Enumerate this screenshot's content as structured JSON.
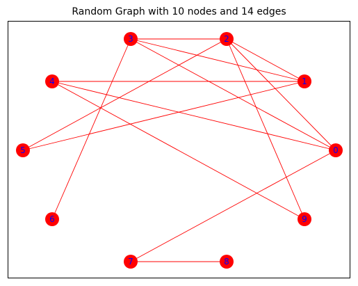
{
  "figure": {
    "title": "Random Graph with 10 nodes and 14 edges"
  },
  "graph": {
    "node_color": "#ff0000",
    "label_color": "#0000ff",
    "edge_color": "#ff0000",
    "frame_color": "#000000",
    "nodes": [
      "0",
      "1",
      "2",
      "3",
      "4",
      "5",
      "6",
      "7",
      "8",
      "9"
    ],
    "edges": [
      [
        "3",
        "2"
      ],
      [
        "3",
        "1"
      ],
      [
        "3",
        "0"
      ],
      [
        "3",
        "6"
      ],
      [
        "2",
        "1"
      ],
      [
        "2",
        "0"
      ],
      [
        "2",
        "9"
      ],
      [
        "2",
        "5"
      ],
      [
        "4",
        "1"
      ],
      [
        "4",
        "0"
      ],
      [
        "4",
        "9"
      ],
      [
        "5",
        "1"
      ],
      [
        "0",
        "7"
      ],
      [
        "7",
        "8"
      ]
    ]
  }
}
